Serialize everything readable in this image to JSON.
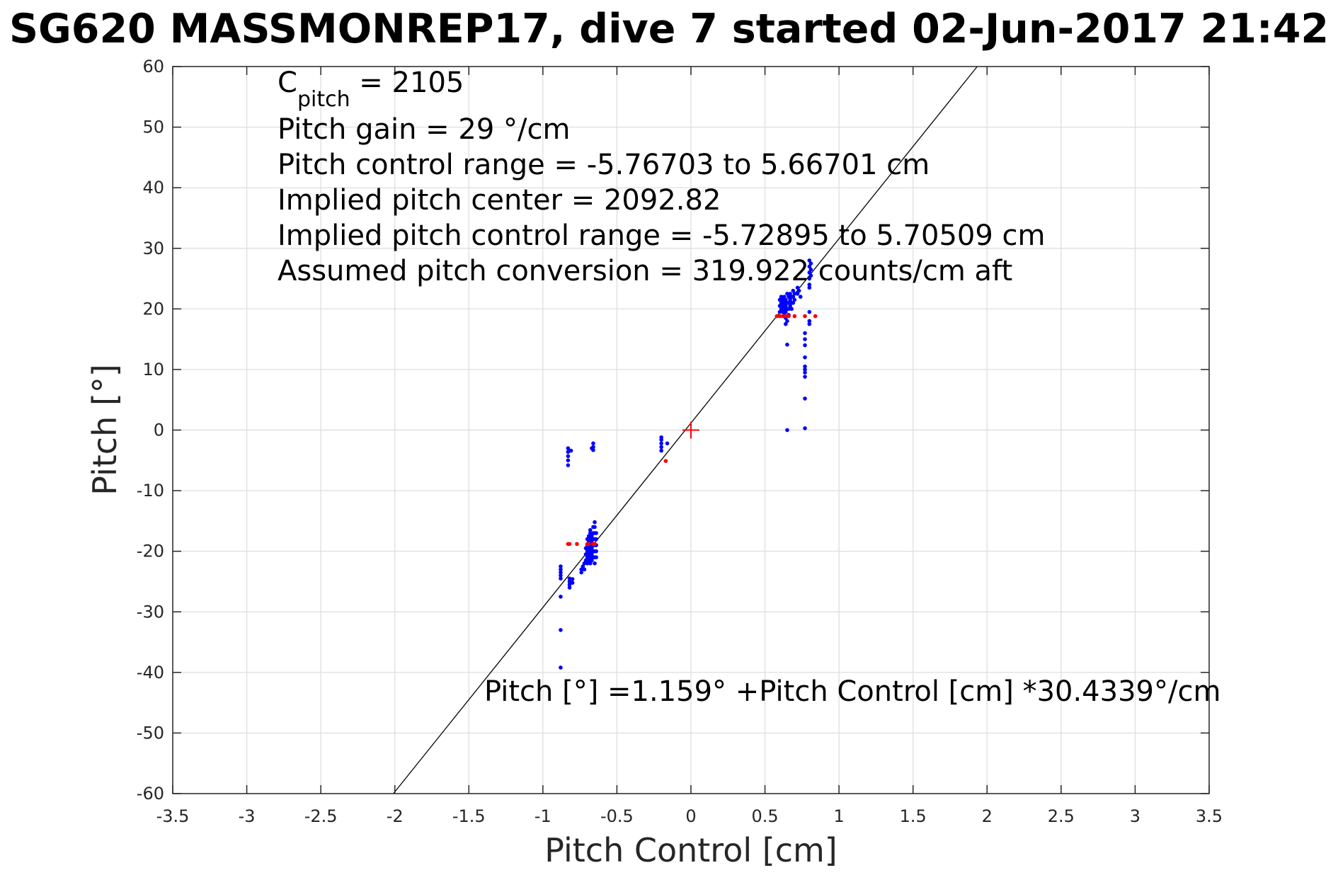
{
  "chart_data": {
    "type": "scatter",
    "title": "SG620 MASSMONREP17, dive 7 started 02-Jun-2017 21:42",
    "xlabel": "Pitch Control [cm]",
    "ylabel": "Pitch [°]",
    "xlim": [
      -3.5,
      3.5
    ],
    "ylim": [
      -60,
      60
    ],
    "xticks": [
      -3.5,
      -3,
      -2.5,
      -2,
      -1.5,
      -1,
      -0.5,
      0,
      0.5,
      1,
      1.5,
      2,
      2.5,
      3,
      3.5
    ],
    "xtick_labels": [
      "-3.5",
      "-3",
      "-2.5",
      "-2",
      "-1.5",
      "-1",
      "-0.5",
      "0",
      "0.5",
      "1",
      "1.5",
      "2",
      "2.5",
      "3",
      "3.5"
    ],
    "yticks": [
      -60,
      -50,
      -40,
      -30,
      -20,
      -10,
      0,
      10,
      20,
      30,
      40,
      50,
      60
    ],
    "ytick_labels": [
      "-60",
      "-50",
      "-40",
      "-30",
      "-20",
      "-10",
      "0",
      "10",
      "20",
      "30",
      "40",
      "50",
      "60"
    ],
    "grid": true,
    "annotations": {
      "c_pitch_base": "C",
      "c_pitch_sub": "pitch",
      "c_pitch_value": " = 2105",
      "lines": [
        "Pitch gain = 29 °/cm",
        "Pitch control range = -5.76703 to 5.66701 cm",
        "Implied pitch center = 2092.82",
        "Implied pitch control range = -5.72895 to 5.70509 cm",
        "Assumed pitch conversion = 319.922 counts/cm aft"
      ],
      "fit_equation": "Pitch [°] =1.159° +Pitch Control [cm] *30.4339°/cm"
    },
    "fit_line": {
      "intercept": 1.159,
      "slope": 30.4339,
      "color": "#000000"
    },
    "center_marker": {
      "x": 0,
      "y": 0,
      "color": "#ff0000"
    },
    "series": [
      {
        "color": "#0000ff",
        "points": [
          [
            -0.88,
            -39.2
          ],
          [
            -0.88,
            -33
          ],
          [
            -0.88,
            -27.5
          ],
          [
            -0.88,
            -24.5
          ],
          [
            -0.88,
            -24
          ],
          [
            -0.88,
            -23.5
          ],
          [
            -0.88,
            -23
          ],
          [
            -0.88,
            -22.5
          ],
          [
            -0.82,
            -26
          ],
          [
            -0.82,
            -25.5
          ],
          [
            -0.82,
            -25
          ],
          [
            -0.82,
            -24.5
          ],
          [
            -0.8,
            -25.2
          ],
          [
            -0.8,
            -24.6
          ],
          [
            -0.74,
            -23.5
          ],
          [
            -0.74,
            -23
          ],
          [
            -0.73,
            -22.5
          ],
          [
            -0.72,
            -23
          ],
          [
            -0.72,
            -22
          ],
          [
            -0.71,
            -21.5
          ],
          [
            -0.71,
            -20.5
          ],
          [
            -0.71,
            -19.5
          ],
          [
            -0.7,
            -22
          ],
          [
            -0.7,
            -21
          ],
          [
            -0.7,
            -20
          ],
          [
            -0.7,
            -19
          ],
          [
            -0.7,
            -18
          ],
          [
            -0.69,
            -21.5
          ],
          [
            -0.69,
            -20.5
          ],
          [
            -0.69,
            -19.5
          ],
          [
            -0.69,
            -18.5
          ],
          [
            -0.69,
            -17.5
          ],
          [
            -0.68,
            -22
          ],
          [
            -0.68,
            -21
          ],
          [
            -0.68,
            -20
          ],
          [
            -0.68,
            -19
          ],
          [
            -0.68,
            -18
          ],
          [
            -0.68,
            -17
          ],
          [
            -0.68,
            -16.5
          ],
          [
            -0.67,
            -21.5
          ],
          [
            -0.67,
            -20.5
          ],
          [
            -0.67,
            -19.5
          ],
          [
            -0.67,
            -18.5
          ],
          [
            -0.67,
            -17.5
          ],
          [
            -0.66,
            -21
          ],
          [
            -0.66,
            -20
          ],
          [
            -0.66,
            -19
          ],
          [
            -0.66,
            -18
          ],
          [
            -0.66,
            -17
          ],
          [
            -0.66,
            -16
          ],
          [
            -0.65,
            -22
          ],
          [
            -0.65,
            -21
          ],
          [
            -0.65,
            -20
          ],
          [
            -0.65,
            -19
          ],
          [
            -0.65,
            -18
          ],
          [
            -0.65,
            -17
          ],
          [
            -0.65,
            -16
          ],
          [
            -0.65,
            -15.2
          ],
          [
            -0.64,
            -21
          ],
          [
            -0.64,
            -20
          ],
          [
            -0.64,
            -19
          ],
          [
            -0.64,
            -18
          ],
          [
            -0.64,
            -17
          ],
          [
            -0.83,
            -5.8
          ],
          [
            -0.83,
            -5
          ],
          [
            -0.83,
            -4.3
          ],
          [
            -0.83,
            -3.6
          ],
          [
            -0.83,
            -3
          ],
          [
            -0.81,
            -3.4
          ],
          [
            -0.66,
            -3.3
          ],
          [
            -0.66,
            -2.8
          ],
          [
            -0.66,
            -2.2
          ],
          [
            -0.67,
            -3
          ],
          [
            -0.2,
            -3.4
          ],
          [
            -0.2,
            -2.8
          ],
          [
            -0.2,
            -2.2
          ],
          [
            -0.2,
            -1.6
          ],
          [
            -0.2,
            -1.2
          ],
          [
            -0.16,
            -2.2
          ],
          [
            0.6,
            21.5
          ],
          [
            0.6,
            20.5
          ],
          [
            0.6,
            19.5
          ],
          [
            0.61,
            22
          ],
          [
            0.61,
            21
          ],
          [
            0.61,
            20
          ],
          [
            0.62,
            21.5
          ],
          [
            0.62,
            20.5
          ],
          [
            0.62,
            19.5
          ],
          [
            0.63,
            22
          ],
          [
            0.63,
            21
          ],
          [
            0.63,
            20
          ],
          [
            0.63,
            19
          ],
          [
            0.64,
            21.5
          ],
          [
            0.64,
            20.5
          ],
          [
            0.64,
            19.5
          ],
          [
            0.64,
            18.5
          ],
          [
            0.64,
            17.5
          ],
          [
            0.65,
            22.5
          ],
          [
            0.65,
            21
          ],
          [
            0.65,
            20
          ],
          [
            0.65,
            18
          ],
          [
            0.66,
            22
          ],
          [
            0.66,
            21
          ],
          [
            0.66,
            20
          ],
          [
            0.66,
            19
          ],
          [
            0.67,
            22.5
          ],
          [
            0.67,
            21.5
          ],
          [
            0.67,
            20.5
          ],
          [
            0.68,
            22
          ],
          [
            0.68,
            21
          ],
          [
            0.68,
            20
          ],
          [
            0.69,
            23
          ],
          [
            0.69,
            22
          ],
          [
            0.69,
            21
          ],
          [
            0.7,
            22.5
          ],
          [
            0.7,
            21.5
          ],
          [
            0.72,
            23.5
          ],
          [
            0.72,
            22.5
          ],
          [
            0.73,
            23
          ],
          [
            0.74,
            22
          ],
          [
            0.8,
            28
          ],
          [
            0.8,
            27
          ],
          [
            0.8,
            26
          ],
          [
            0.8,
            25
          ],
          [
            0.8,
            24
          ],
          [
            0.8,
            23.5
          ],
          [
            0.81,
            27.5
          ],
          [
            0.81,
            26.5
          ],
          [
            0.81,
            25.5
          ],
          [
            0.8,
            19.5
          ],
          [
            0.8,
            18
          ],
          [
            0.8,
            17.5
          ],
          [
            0.77,
            16
          ],
          [
            0.77,
            15
          ],
          [
            0.77,
            14
          ],
          [
            0.77,
            12
          ],
          [
            0.77,
            10.5
          ],
          [
            0.77,
            10
          ],
          [
            0.77,
            9.5
          ],
          [
            0.77,
            8.8
          ],
          [
            0.77,
            5.2
          ],
          [
            0.77,
            0.3
          ],
          [
            0.65,
            14.1
          ],
          [
            0.65,
            0
          ]
        ]
      },
      {
        "color": "#ff0000",
        "points": [
          [
            -0.83,
            -18.8
          ],
          [
            -0.82,
            -18.8
          ],
          [
            -0.77,
            -18.8
          ],
          [
            -0.7,
            -18.8
          ],
          [
            -0.69,
            -18.8
          ],
          [
            -0.66,
            -18.8
          ],
          [
            -0.65,
            -18.8
          ],
          [
            -0.17,
            -5.1
          ],
          [
            0.58,
            18.8
          ],
          [
            0.6,
            18.8
          ],
          [
            0.62,
            18.8
          ],
          [
            0.64,
            18.8
          ],
          [
            0.66,
            18.8
          ],
          [
            0.7,
            18.8
          ],
          [
            0.77,
            18.8
          ],
          [
            0.84,
            18.8
          ]
        ]
      }
    ]
  }
}
